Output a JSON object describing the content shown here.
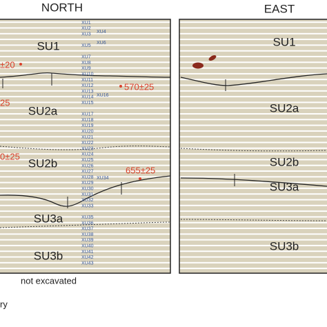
{
  "panels": [
    {
      "title": "NORTH",
      "units": [
        "SU1",
        "SU2a",
        "SU2b",
        "SU3a",
        "SU3b"
      ],
      "dates": [
        "±20",
        "570±25",
        "25",
        "0±25",
        "655±25"
      ]
    },
    {
      "title": "EAST",
      "units": [
        "SU1",
        "SU2a",
        "SU2b",
        "SU3a",
        "SU3b"
      ]
    }
  ],
  "xu_labels": [
    "XU1",
    "XU2",
    "XU3",
    "XU4",
    "XU5",
    "XU6",
    "XU7",
    "XU8",
    "XU9",
    "XU10",
    "XU11",
    "XU12",
    "XU13",
    "XU14",
    "XU15",
    "XU16",
    "XU17",
    "XU18",
    "XU19",
    "XU20",
    "XU21",
    "XU22",
    "XU23",
    "XU24",
    "XU25",
    "XU26",
    "XU27",
    "XU28",
    "XU29",
    "XU30",
    "XU31",
    "XU32",
    "XU33",
    "XU34",
    "XU35",
    "XU36",
    "XU37",
    "XU38",
    "XU39",
    "XU40",
    "XU41",
    "XU42",
    "XU43"
  ],
  "footer": "not excavated",
  "legend_fragment": "ry"
}
